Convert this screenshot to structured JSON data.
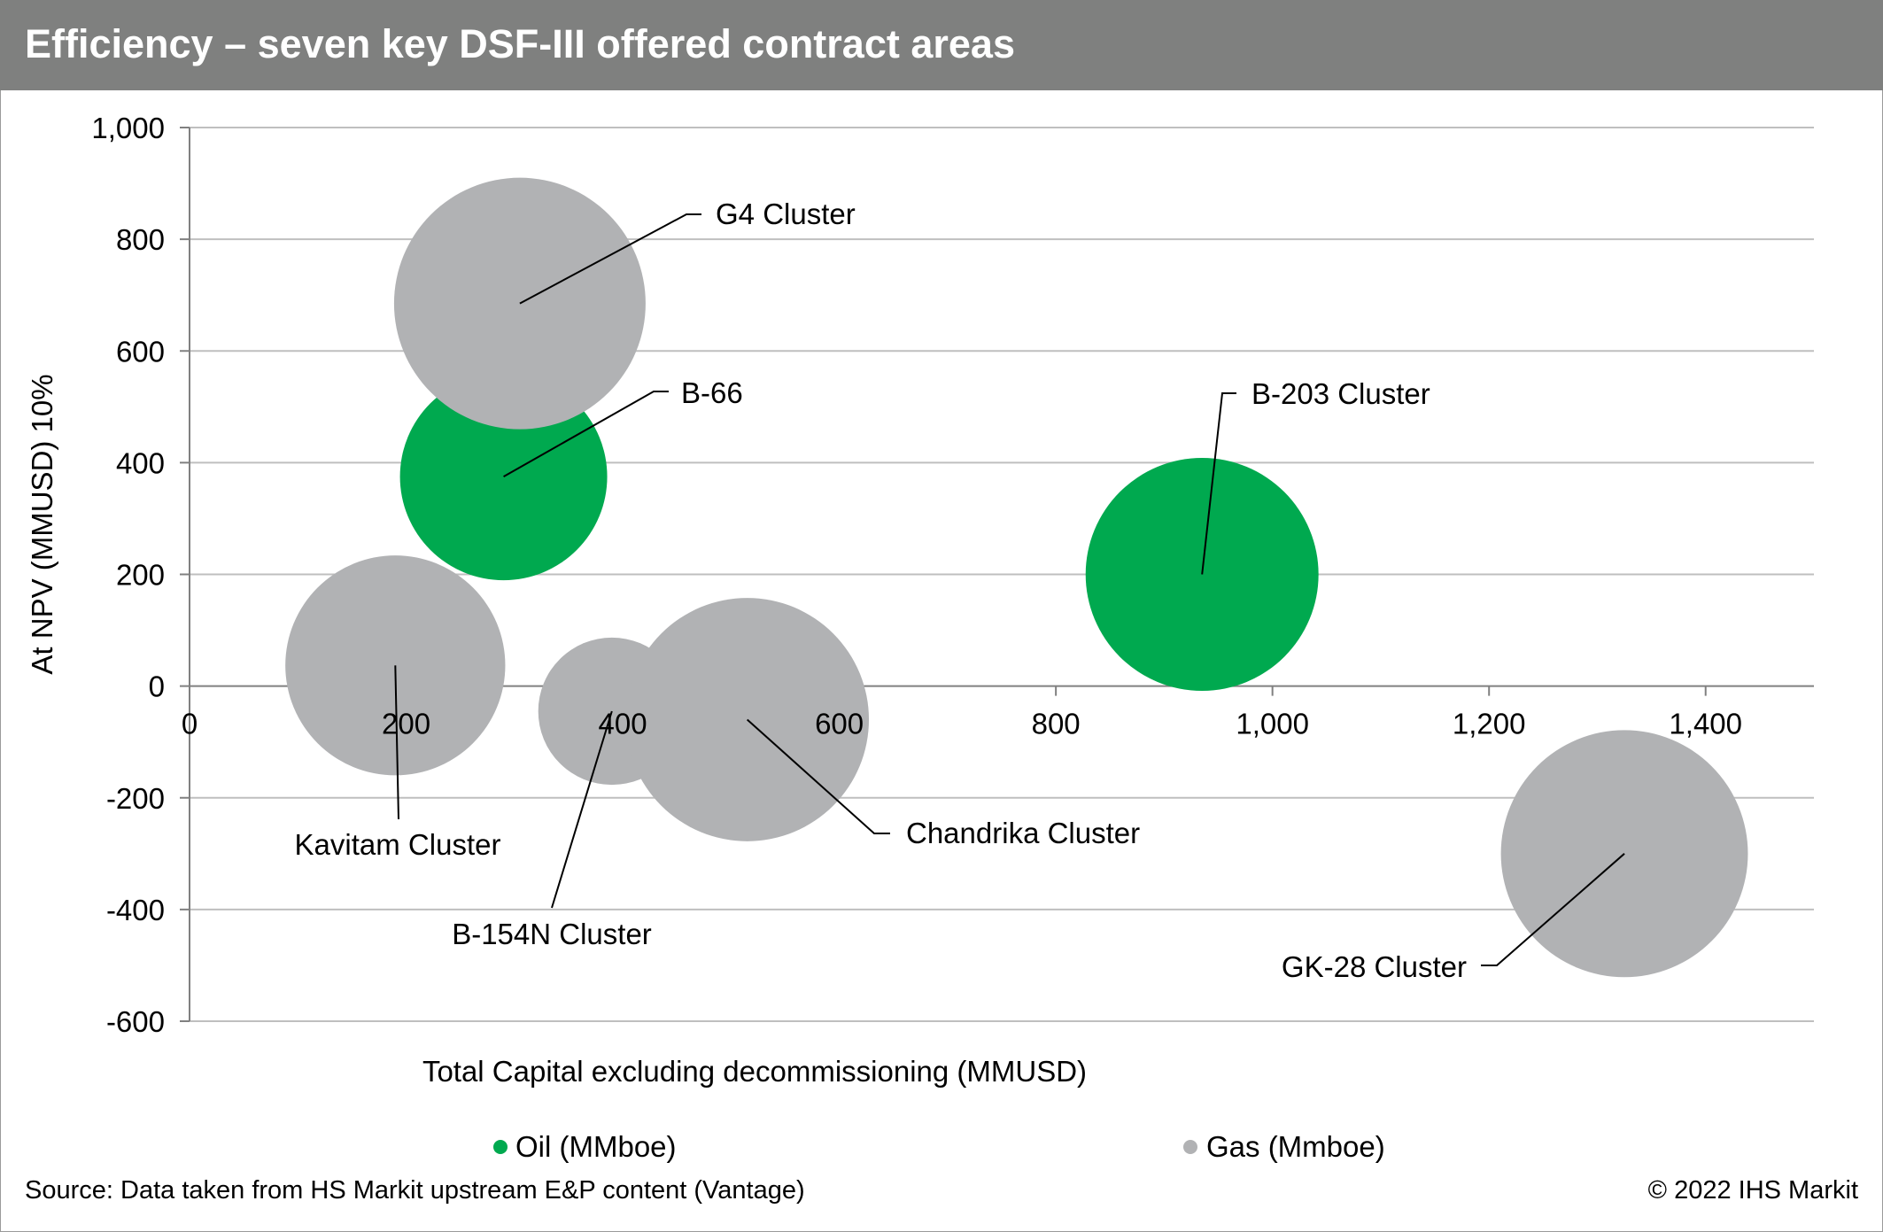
{
  "header": {
    "title": "Efficiency – seven key DSF-III offered contract areas"
  },
  "footer": {
    "source": "Source: Data taken from HS Markit upstream E&P content (Vantage)",
    "copyright": "© 2022 IHS Markit"
  },
  "colors": {
    "header_bg": "#7f807f",
    "oil": "#00a94f",
    "gas": "#b1b2b4",
    "grid": "#bfbfbf"
  },
  "chart_data": {
    "type": "bubble",
    "title": "",
    "xlabel": "Total Capital excluding decommissioning (MMUSD)",
    "ylabel": "At NPV (MMUSD) 10%",
    "xlim": [
      0,
      1500
    ],
    "ylim": [
      -600,
      1000
    ],
    "x_ticks": [
      0,
      200,
      400,
      600,
      800,
      1000,
      1200,
      1400
    ],
    "x_tick_labels": [
      "0",
      "200",
      "400",
      "600",
      "800",
      "1,000",
      "1,200",
      "1,400"
    ],
    "y_ticks": [
      1000,
      800,
      600,
      400,
      200,
      0,
      -200,
      -400,
      -600
    ],
    "y_tick_labels": [
      "1,000",
      "800",
      "600",
      "400",
      "200",
      "0",
      "-200",
      "-400",
      "-600"
    ],
    "grid": "horizontal",
    "legend_position": "bottom",
    "series": [
      {
        "name": "Oil (MMboe)",
        "color": "#00a94f",
        "points": [
          {
            "label": "B-66",
            "x": 290,
            "y": 375,
            "size": 95
          },
          {
            "label": "B-203 Cluster",
            "x": 935,
            "y": 200,
            "size": 120
          }
        ]
      },
      {
        "name": "Gas (Mmboe)",
        "color": "#b1b2b4",
        "points": [
          {
            "label": "G4 Cluster",
            "x": 305,
            "y": 685,
            "size": 140
          },
          {
            "label": "Kavitam Cluster",
            "x": 190,
            "y": 37,
            "size": 107
          },
          {
            "label": "B-154N Cluster",
            "x": 390,
            "y": -45,
            "size": 48
          },
          {
            "label": "Chandrika Cluster",
            "x": 515,
            "y": -60,
            "size": 131
          },
          {
            "label": "GK-28 Cluster",
            "x": 1325,
            "y": -300,
            "size": 135
          }
        ]
      }
    ]
  }
}
